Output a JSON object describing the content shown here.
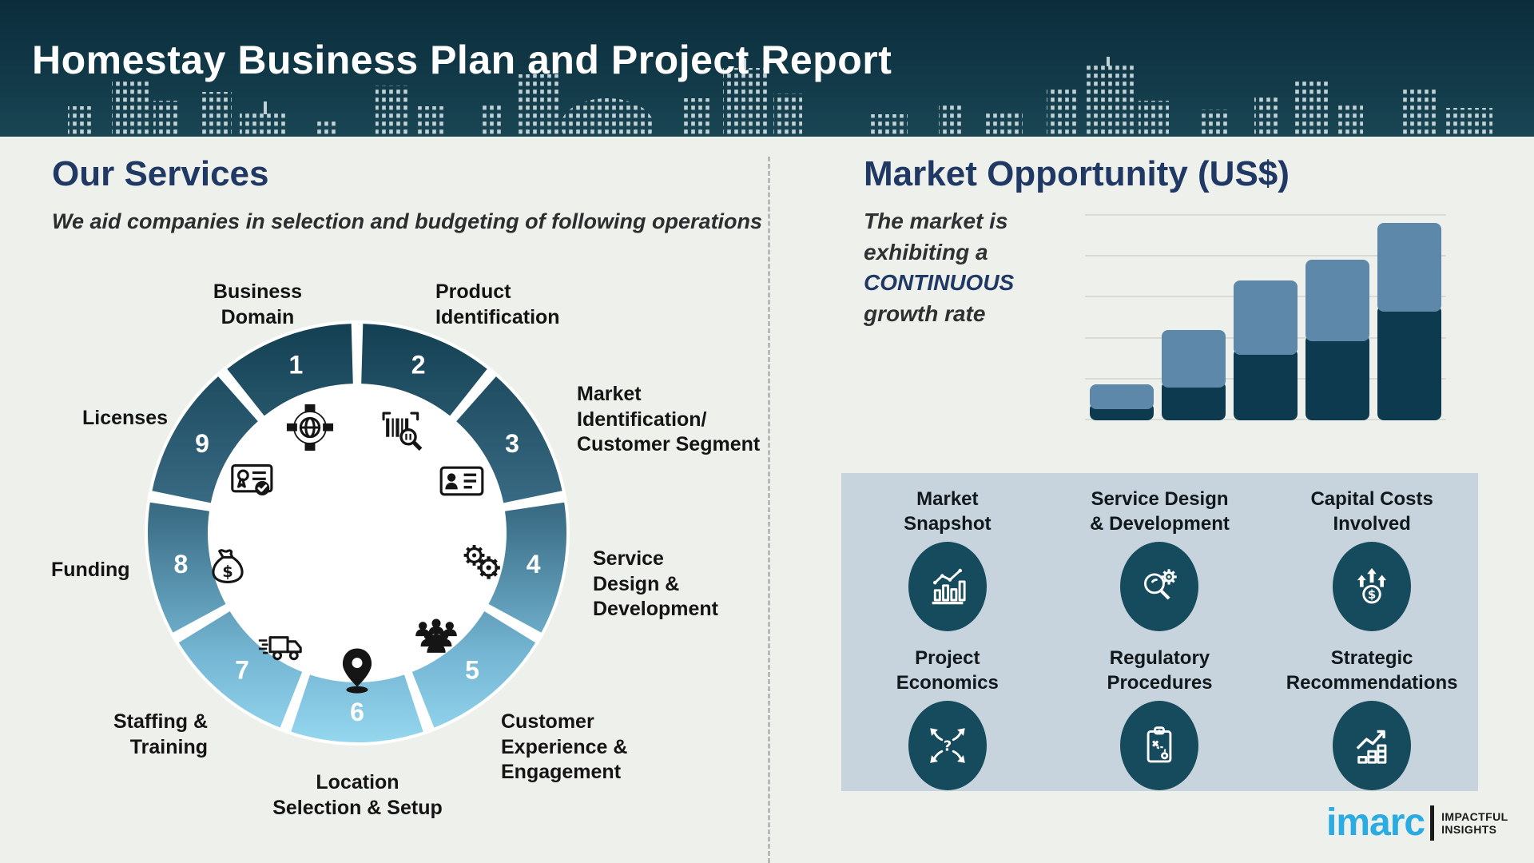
{
  "header": {
    "title": "Homestay Business Plan and Project Report"
  },
  "services": {
    "title": "Our Services",
    "subtitle": "We aid companies in selection and budgeting of following operations",
    "items": [
      {
        "num": "1",
        "label": "Business\nDomain",
        "icon": "network-globe-icon"
      },
      {
        "num": "2",
        "label": "Product\nIdentification",
        "icon": "barcode-scan-icon"
      },
      {
        "num": "3",
        "label": "Market\nIdentification/\nCustomer Segment",
        "icon": "id-card-icon"
      },
      {
        "num": "4",
        "label": "Service\nDesign &\nDevelopment",
        "icon": "gears-icon"
      },
      {
        "num": "5",
        "label": "Customer\nExperience &\nEngagement",
        "icon": "audience-icon"
      },
      {
        "num": "6",
        "label": "Location\nSelection & Setup",
        "icon": "location-pin-icon"
      },
      {
        "num": "7",
        "label": "Staffing &\nTraining",
        "icon": "delivery-truck-icon"
      },
      {
        "num": "8",
        "label": "Funding",
        "icon": "money-bag-icon"
      },
      {
        "num": "9",
        "label": "Licenses",
        "icon": "certificate-icon"
      }
    ]
  },
  "market": {
    "title": "Market Opportunity (US$)",
    "note": {
      "l1": "The market is",
      "l2": "exhibiting a",
      "l3": "CONTINUOUS",
      "l4": "growth rate"
    }
  },
  "chart_data": {
    "type": "bar",
    "stacked": true,
    "title": "Market Opportunity (US$)",
    "categories": [
      "",
      "",
      "",
      "",
      ""
    ],
    "series": [
      {
        "name": "dark-base",
        "color": "#0d3a4e",
        "values": [
          5.5,
          16,
          32,
          38.5,
          53
        ]
      },
      {
        "name": "light-upper",
        "color": "#5e88aa",
        "values": [
          12,
          28,
          36.5,
          40,
          43.5
        ]
      }
    ],
    "ylim": [
      0,
      100
    ],
    "gridline_step": 20,
    "grid": true,
    "legend": false,
    "axis_labels_visible": false
  },
  "panel": {
    "items": [
      {
        "label": "Market\nSnapshot",
        "icon": "market-snapshot-icon"
      },
      {
        "label": "Service Design\n& Development",
        "icon": "service-design-icon"
      },
      {
        "label": "Capital Costs\nInvolved",
        "icon": "capital-costs-icon"
      },
      {
        "label": "Project\nEconomics",
        "icon": "project-economics-icon"
      },
      {
        "label": "Regulatory\nProcedures",
        "icon": "regulatory-procedures-icon"
      },
      {
        "label": "Strategic\nRecommendations",
        "icon": "strategic-recommendations-icon"
      }
    ]
  },
  "logo": {
    "brand": "imarc",
    "tagline1": "IMPACTFUL",
    "tagline2": "INSIGHTS"
  },
  "colors": {
    "header_bg": "#0e3342",
    "heading_navy": "#203864",
    "wheel_top": "#123e50",
    "wheel_bottom": "#97d9f0",
    "bar_dark": "#0d3a4e",
    "bar_light": "#5e88aa",
    "panel_bg": "#c7d4de",
    "icon_circle": "#164a5d",
    "brand_cyan": "#2aabe2"
  }
}
